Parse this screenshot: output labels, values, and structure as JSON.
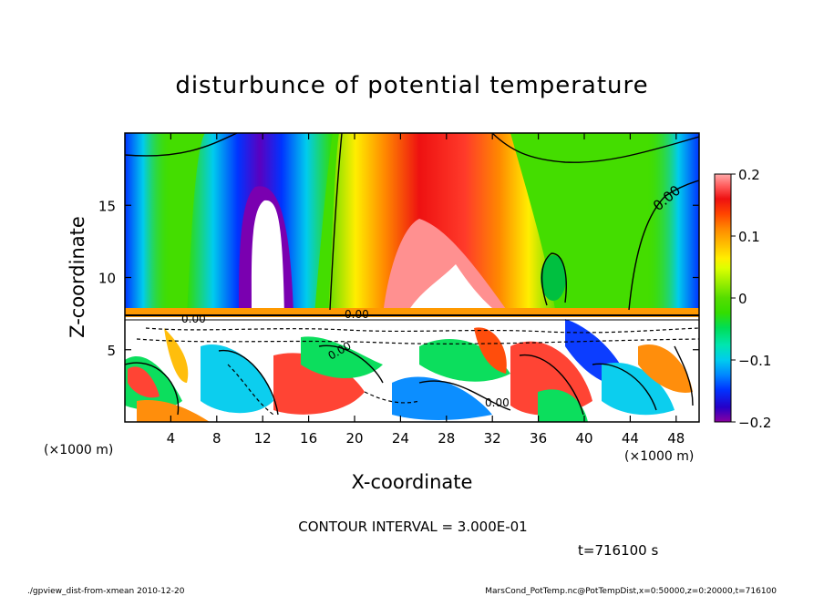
{
  "chart_data": {
    "type": "heatmap",
    "title": "disturbunce of potential temperature",
    "xlabel": "X-coordinate",
    "ylabel": "Z-coordinate",
    "x_unit_label": "(×1000 m)",
    "y_unit_label": "(×1000 m)",
    "xlim": [
      0,
      50
    ],
    "ylim": [
      0,
      20
    ],
    "x_ticks": [
      4,
      8,
      12,
      16,
      20,
      24,
      28,
      32,
      36,
      40,
      44,
      48
    ],
    "y_ticks": [
      5,
      10,
      15
    ],
    "colorbar": {
      "min": -0.2,
      "max": 0.2,
      "ticks": [
        "0.2",
        "0.1",
        "0",
        "−0.1",
        "−0.2"
      ],
      "tick_values": [
        0.2,
        0.1,
        0,
        -0.1,
        -0.2
      ],
      "colors": [
        "#8a00a0",
        "#2500c8",
        "#0033ff",
        "#0088ff",
        "#00ccee",
        "#00e6b0",
        "#00dd55",
        "#33dd00",
        "#99ee00",
        "#ddff00",
        "#ffee00",
        "#ffbb00",
        "#ff8800",
        "#ff4400",
        "#ee1111",
        "#ff5a5a",
        "#ffaaaa"
      ]
    },
    "contour_labels": [
      "0.00",
      "0.00",
      "0.00",
      "0.00",
      "0.00"
    ],
    "contour_interval_text": "CONTOUR INTERVAL = 3.000E-01",
    "time_text": "t=716100 s",
    "footer_left": "./gpview_dist-from-xmean  2010-12-20",
    "footer_right": "MarsCond_PotTemp.nc@PotTempDist,x=0:50000,z=0:20000,t=716100"
  }
}
